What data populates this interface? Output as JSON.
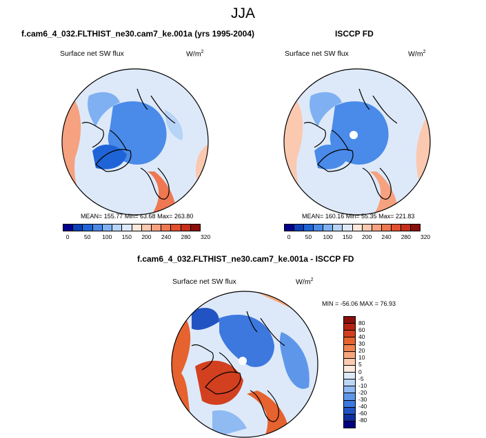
{
  "main_title": "JJA",
  "chart_data": [
    {
      "type": "heatmap",
      "projection": "north polar stereographic",
      "title": "f.cam6_4_032.FLTHIST_ne30.cam7_ke.001a (yrs 1995-2004)",
      "variable": "Surface net SW flux",
      "units": "W/m",
      "units_exp": "2",
      "stats": "MEAN= 155.77  Min=  63.68  Max= 263.80",
      "colorbar": {
        "colors": [
          "#00008c",
          "#0c3fb8",
          "#1f64d6",
          "#4a8ae8",
          "#7fb1f2",
          "#b7d4f7",
          "#dde9f9",
          "#fde8da",
          "#fbc8b0",
          "#f6a17f",
          "#ef7751",
          "#e24f2e",
          "#c6301a",
          "#8a0f0a"
        ],
        "tick_labels": [
          "0",
          "50",
          "100",
          "150",
          "200",
          "240",
          "280",
          "320"
        ]
      }
    },
    {
      "type": "heatmap",
      "projection": "north polar stereographic",
      "title": "ISCCP FD",
      "variable": "Surface net SW flux",
      "units": "W/m",
      "units_exp": "2",
      "stats": "MEAN= 160.16  Min=  55.35  Max= 221.83",
      "colorbar": {
        "colors": [
          "#00008c",
          "#0c3fb8",
          "#1f64d6",
          "#4a8ae8",
          "#7fb1f2",
          "#b7d4f7",
          "#dde9f9",
          "#fde8da",
          "#fbc8b0",
          "#f6a17f",
          "#ef7751",
          "#e24f2e",
          "#c6301a",
          "#8a0f0a"
        ],
        "tick_labels": [
          "0",
          "50",
          "100",
          "150",
          "200",
          "240",
          "280",
          "320"
        ]
      }
    },
    {
      "type": "heatmap",
      "projection": "north polar stereographic",
      "title": "f.cam6_4_032.FLTHIST_ne30.cam7_ke.001a - ISCCP FD",
      "variable": "Surface net SW flux",
      "units": "W/m",
      "units_exp": "2",
      "stats": "MIN = -56.06 MAX = 76.93",
      "colorbar": {
        "colors": [
          "#8a0f0a",
          "#b52212",
          "#d2401f",
          "#e6622f",
          "#f08451",
          "#f6a67c",
          "#fbcbb0",
          "#fde9dc",
          "#dde9f9",
          "#bcd6f6",
          "#8fbaf2",
          "#5e97ea",
          "#3d78de",
          "#2253c3",
          "#0f2f9e",
          "#000080"
        ],
        "tick_labels": [
          "80",
          "60",
          "40",
          "30",
          "20",
          "10",
          "5",
          "0",
          "-5",
          "-10",
          "-20",
          "-30",
          "-40",
          "-60",
          "-80"
        ]
      }
    }
  ]
}
